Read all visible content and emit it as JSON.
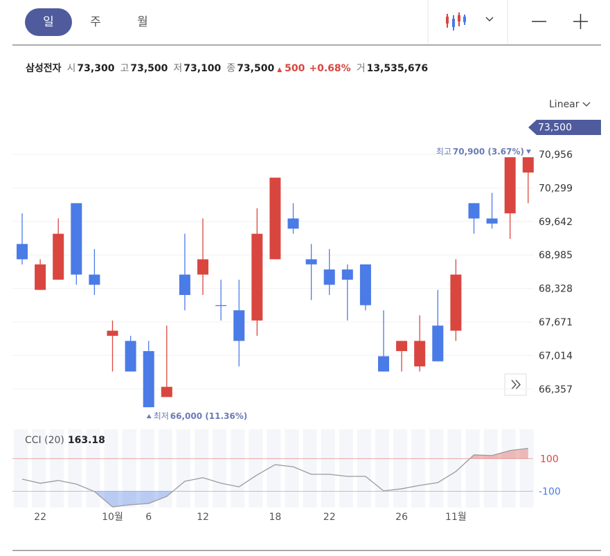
{
  "toolbar": {
    "tabs": [
      "일",
      "주",
      "월"
    ],
    "active": 0
  },
  "quote": {
    "name": "삼성전자",
    "fields": [
      {
        "label": "시",
        "value": "73,300"
      },
      {
        "label": "고",
        "value": "73,500"
      },
      {
        "label": "저",
        "value": "73,100"
      },
      {
        "label": "종",
        "value": "73,500"
      }
    ],
    "change": "500",
    "change_pct": "+0.68%",
    "volume_label": "거",
    "volume": "13,535,676"
  },
  "scale_mode": "Linear",
  "chart_data": [
    {
      "type": "candlestick",
      "categories": [
        null,
        "22",
        null,
        null,
        null,
        "10월",
        null,
        "6",
        null,
        null,
        "12",
        null,
        null,
        null,
        "18",
        null,
        null,
        "22",
        null,
        null,
        null,
        "26",
        null,
        null,
        "11월",
        null,
        null,
        null,
        null
      ],
      "open": [
        69200,
        68300,
        68500,
        70000,
        68600,
        67400,
        67300,
        67100,
        66200,
        68600,
        68600,
        68000,
        67900,
        67700,
        68900,
        69700,
        68900,
        68700,
        68700,
        68800,
        67000,
        67100,
        66800,
        67600,
        67500,
        70000,
        69700,
        69800,
        70600
      ],
      "high": [
        69800,
        68900,
        69700,
        70000,
        69100,
        67700,
        67400,
        67300,
        67600,
        69400,
        69700,
        68500,
        68500,
        69900,
        70500,
        70000,
        69200,
        69100,
        68800,
        68800,
        67900,
        67300,
        67800,
        68300,
        68900,
        70000,
        70200,
        70900,
        70900
      ],
      "low": [
        68800,
        68300,
        68500,
        68400,
        68200,
        66700,
        66700,
        66000,
        66200,
        67900,
        68200,
        67700,
        66800,
        67400,
        68900,
        69400,
        68100,
        68200,
        67700,
        67900,
        66700,
        66700,
        66700,
        66900,
        67300,
        69400,
        69500,
        69300,
        70000
      ],
      "close": [
        68900,
        68800,
        69400,
        68600,
        68400,
        67500,
        66700,
        66000,
        66400,
        68200,
        68900,
        68000,
        67300,
        69400,
        70500,
        69500,
        68800,
        68400,
        68500,
        68000,
        66700,
        67300,
        67300,
        66900,
        68600,
        69700,
        69600,
        70900,
        70900
      ],
      "up_color": "#d9463f",
      "down_color": "#4a7be6",
      "ylim": [
        65900,
        71200
      ],
      "yticks": [
        {
          "value": 70956,
          "label": "70,956"
        },
        {
          "value": 70299,
          "label": "70,299"
        },
        {
          "value": 69642,
          "label": "69,642"
        },
        {
          "value": 68985,
          "label": "68,985"
        },
        {
          "value": 68328,
          "label": "68,328"
        },
        {
          "value": 67671,
          "label": "67,671"
        },
        {
          "value": 67014,
          "label": "67,014"
        },
        {
          "value": 66357,
          "label": "66,357"
        }
      ],
      "grid": true,
      "current_price": "73,500",
      "high_annotation": {
        "label": "최고",
        "text": "70,900 (3.67%)"
      },
      "low_annotation": {
        "label": "최저",
        "text": "66,000 (11.36%)"
      }
    },
    {
      "type": "line",
      "title": "CCI (20)",
      "values": [
        -26,
        -51,
        -34,
        -56,
        -102,
        -196,
        -183,
        -175,
        -132,
        -39,
        -17,
        -51,
        -73,
        0,
        63,
        50,
        4,
        4,
        -9,
        -9,
        -98,
        -85,
        -64,
        -47,
        21,
        123,
        119,
        150,
        163.18
      ],
      "color": "#9a9a9a",
      "upper_color": "#d9463f",
      "lower_color": "#4a7be6",
      "ylim": [
        -200,
        280
      ],
      "yticks": [
        100,
        -100
      ]
    }
  ]
}
